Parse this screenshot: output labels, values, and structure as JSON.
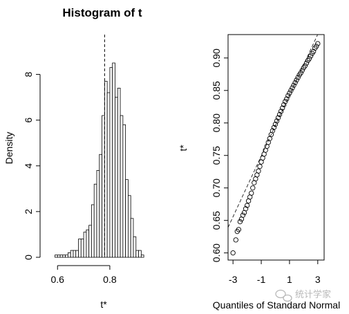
{
  "chart_data": [
    {
      "type": "bar",
      "title": "Histogram of t",
      "xlabel": "t*",
      "ylabel": "Density",
      "xlim": [
        0.565,
        0.935
      ],
      "ylim": [
        0,
        9.5
      ],
      "xticks": [
        "0.6",
        "0.8"
      ],
      "yticks": [
        "0",
        "2",
        "4",
        "6",
        "8"
      ],
      "bin_width": 0.01,
      "bins": [
        {
          "x0": 0.59,
          "x1": 0.6,
          "density": 0.1
        },
        {
          "x0": 0.6,
          "x1": 0.61,
          "density": 0.1
        },
        {
          "x0": 0.61,
          "x1": 0.62,
          "density": 0.1
        },
        {
          "x0": 0.62,
          "x1": 0.63,
          "density": 0.1
        },
        {
          "x0": 0.63,
          "x1": 0.64,
          "density": 0.1
        },
        {
          "x0": 0.64,
          "x1": 0.65,
          "density": 0.2
        },
        {
          "x0": 0.65,
          "x1": 0.66,
          "density": 0.3
        },
        {
          "x0": 0.66,
          "x1": 0.67,
          "density": 0.3
        },
        {
          "x0": 0.67,
          "x1": 0.68,
          "density": 0.3
        },
        {
          "x0": 0.68,
          "x1": 0.69,
          "density": 0.8
        },
        {
          "x0": 0.69,
          "x1": 0.7,
          "density": 0.8
        },
        {
          "x0": 0.7,
          "x1": 0.71,
          "density": 1.1
        },
        {
          "x0": 0.71,
          "x1": 0.72,
          "density": 1.2
        },
        {
          "x0": 0.72,
          "x1": 0.73,
          "density": 1.4
        },
        {
          "x0": 0.73,
          "x1": 0.74,
          "density": 2.3
        },
        {
          "x0": 0.74,
          "x1": 0.75,
          "density": 3.2
        },
        {
          "x0": 0.75,
          "x1": 0.76,
          "density": 3.8
        },
        {
          "x0": 0.76,
          "x1": 0.77,
          "density": 4.5
        },
        {
          "x0": 0.77,
          "x1": 0.78,
          "density": 6.2
        },
        {
          "x0": 0.78,
          "x1": 0.79,
          "density": 7.7
        },
        {
          "x0": 0.79,
          "x1": 0.8,
          "density": 7.2
        },
        {
          "x0": 0.8,
          "x1": 0.81,
          "density": 8.3
        },
        {
          "x0": 0.81,
          "x1": 0.82,
          "density": 8.5
        },
        {
          "x0": 0.82,
          "x1": 0.83,
          "density": 7.0
        },
        {
          "x0": 0.83,
          "x1": 0.84,
          "density": 7.4
        },
        {
          "x0": 0.84,
          "x1": 0.85,
          "density": 6.2
        },
        {
          "x0": 0.85,
          "x1": 0.86,
          "density": 5.8
        },
        {
          "x0": 0.86,
          "x1": 0.87,
          "density": 3.4
        },
        {
          "x0": 0.87,
          "x1": 0.88,
          "density": 2.7
        },
        {
          "x0": 0.88,
          "x1": 0.89,
          "density": 1.7
        },
        {
          "x0": 0.89,
          "x1": 0.9,
          "density": 0.9
        },
        {
          "x0": 0.9,
          "x1": 0.91,
          "density": 0.3
        },
        {
          "x0": 0.91,
          "x1": 0.92,
          "density": 0.3
        },
        {
          "x0": 0.92,
          "x1": 0.93,
          "density": 0.1
        }
      ],
      "reference_line": {
        "x": 0.78,
        "style": "dashed"
      },
      "grid": false
    },
    {
      "type": "scatter",
      "title": "",
      "xlabel": "Quantiles of Standard Normal",
      "ylabel": "t*",
      "xlim": [
        -3.35,
        3.45
      ],
      "ylim": [
        0.589,
        0.936
      ],
      "xticks": [
        "-3",
        "-1",
        "1",
        "3"
      ],
      "yticks": [
        "0.60",
        "0.65",
        "0.70",
        "0.75",
        "0.80",
        "0.85",
        "0.90"
      ],
      "points": [
        [
          -3.0,
          0.6
        ],
        [
          -2.8,
          0.62
        ],
        [
          -2.7,
          0.633
        ],
        [
          -2.6,
          0.636
        ],
        [
          -2.5,
          0.648
        ],
        [
          -2.4,
          0.652
        ],
        [
          -2.3,
          0.658
        ],
        [
          -2.2,
          0.662
        ],
        [
          -2.1,
          0.668
        ],
        [
          -2.0,
          0.673
        ],
        [
          -1.9,
          0.68
        ],
        [
          -1.8,
          0.686
        ],
        [
          -1.7,
          0.692
        ],
        [
          -1.6,
          0.7
        ],
        [
          -1.5,
          0.708
        ],
        [
          -1.4,
          0.714
        ],
        [
          -1.3,
          0.72
        ],
        [
          -1.2,
          0.726
        ],
        [
          -1.1,
          0.733
        ],
        [
          -1.0,
          0.74
        ],
        [
          -0.9,
          0.746
        ],
        [
          -0.8,
          0.752
        ],
        [
          -0.7,
          0.758
        ],
        [
          -0.6,
          0.764
        ],
        [
          -0.5,
          0.77
        ],
        [
          -0.4,
          0.776
        ],
        [
          -0.3,
          0.782
        ],
        [
          -0.2,
          0.788
        ],
        [
          -0.1,
          0.793
        ],
        [
          0.0,
          0.798
        ],
        [
          0.1,
          0.803
        ],
        [
          0.2,
          0.808
        ],
        [
          0.3,
          0.813
        ],
        [
          0.4,
          0.818
        ],
        [
          0.5,
          0.823
        ],
        [
          0.6,
          0.828
        ],
        [
          0.7,
          0.833
        ],
        [
          0.8,
          0.837
        ],
        [
          0.9,
          0.842
        ],
        [
          1.0,
          0.846
        ],
        [
          1.1,
          0.85
        ],
        [
          1.2,
          0.854
        ],
        [
          1.3,
          0.858
        ],
        [
          1.4,
          0.862
        ],
        [
          1.5,
          0.866
        ],
        [
          1.6,
          0.87
        ],
        [
          1.7,
          0.874
        ],
        [
          1.8,
          0.877
        ],
        [
          1.9,
          0.881
        ],
        [
          2.0,
          0.885
        ],
        [
          2.1,
          0.888
        ],
        [
          2.2,
          0.892
        ],
        [
          2.3,
          0.896
        ],
        [
          2.4,
          0.899
        ],
        [
          2.5,
          0.903
        ],
        [
          2.6,
          0.907
        ],
        [
          2.7,
          0.91
        ],
        [
          2.8,
          0.915
        ],
        [
          2.9,
          0.918
        ],
        [
          3.0,
          0.922
        ]
      ],
      "reference_line": {
        "intercept": 0.796,
        "slope": 0.0468,
        "style": "dashed"
      },
      "grid": false
    }
  ],
  "watermark": {
    "text": "统计学家",
    "icon": "chat-bubble-icon"
  }
}
